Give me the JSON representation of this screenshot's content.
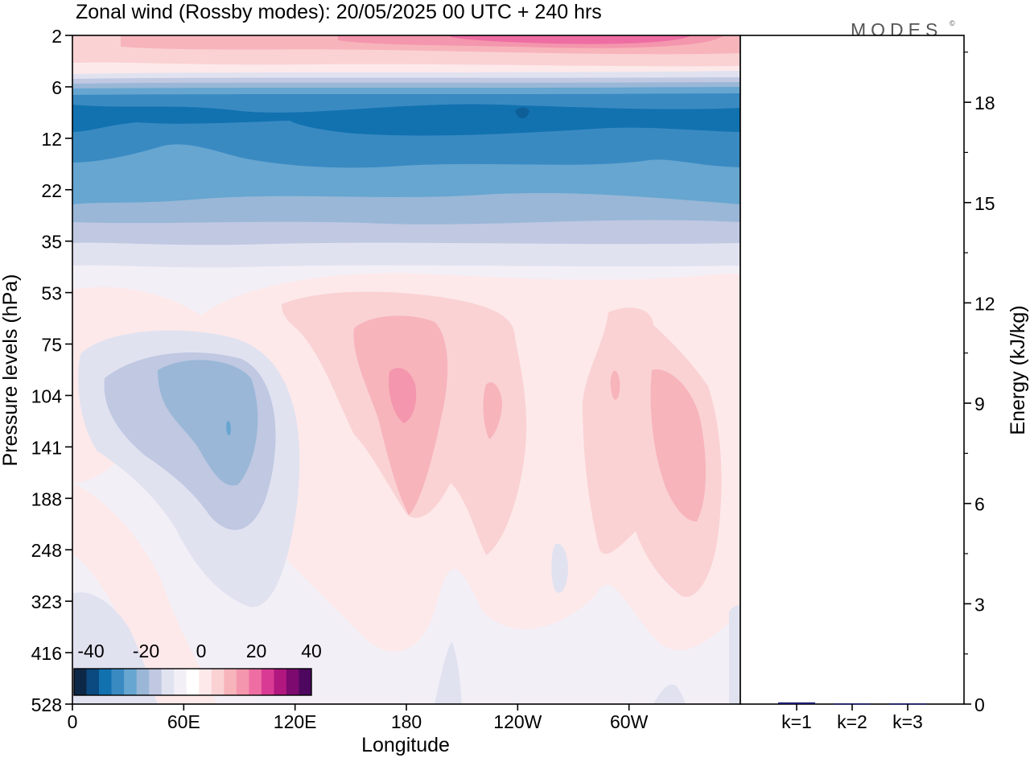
{
  "title": "Zonal wind (Rossby modes):  20/05/2025  00 UTC  + 240 hrs",
  "logo": "MODES",
  "logo_mark": "©",
  "chart_data": [
    {
      "type": "heatmap",
      "variable": "Zonal wind (Rossby modes)",
      "xlabel": "Longitude",
      "ylabel": "Pressure levels (hPa)",
      "x_ticks": [
        "0",
        "60E",
        "120E",
        "180",
        "120W",
        "60W"
      ],
      "y_ticks": [
        "2",
        "6",
        "12",
        "22",
        "35",
        "53",
        "75",
        "104",
        "141",
        "188",
        "248",
        "323",
        "416",
        "528"
      ],
      "colorbar": {
        "labels": [
          "-40",
          "-20",
          "0",
          "20",
          "40"
        ],
        "colors": [
          "#0d2847",
          "#0a4a80",
          "#1272b0",
          "#3a8ac2",
          "#66a6d0",
          "#9ab7d7",
          "#c0c8e2",
          "#e1e2f0",
          "#f3eff7",
          "#ffffff",
          "#fde9ea",
          "#fad2d4",
          "#f7b4bb",
          "#f496ad",
          "#ee6ea3",
          "#d93b94",
          "#b0177f",
          "#7c0a6f",
          "#4d075f"
        ]
      },
      "features": [
        {
          "description": "easterly band",
          "lon_range": [
            0,
            360
          ],
          "plev_range_hpa": [
            6,
            28
          ],
          "approx_min": -25
        },
        {
          "description": "westerly cap",
          "lon_range": [
            200,
            330
          ],
          "plev_range_hpa": [
            2,
            3
          ],
          "approx_max": 17
        },
        {
          "description": "easterly anomaly",
          "lon_center": 85,
          "plev_center_hpa": 120,
          "approx_min": -10
        },
        {
          "description": "westerly anomaly",
          "lon_center": 178,
          "plev_center_hpa": 110,
          "approx_max": 12
        },
        {
          "description": "westerly anomaly",
          "lon_center": 232,
          "plev_center_hpa": 115,
          "approx_max": 8
        },
        {
          "description": "westerly anomaly",
          "lon_center": 315,
          "plev_center_hpa": 140,
          "approx_max": 10
        }
      ]
    },
    {
      "type": "bar",
      "ylabel": "Energy (kJ/kg)",
      "categories": [
        "k=1",
        "k=2",
        "k=3"
      ],
      "values": [
        0.05,
        0.02,
        0.02
      ],
      "ylim": [
        0,
        20
      ],
      "y_ticks": [
        "0",
        "3",
        "6",
        "9",
        "12",
        "15",
        "18"
      ],
      "bar_color": "#1a1a6e"
    }
  ]
}
